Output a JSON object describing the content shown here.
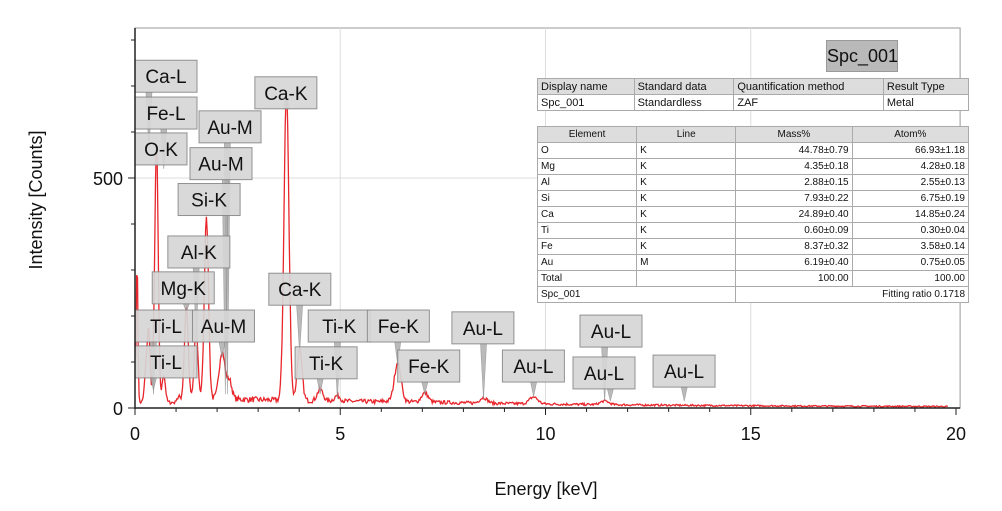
{
  "chart_data": {
    "type": "line",
    "title": "Spc_001",
    "xlabel": "Energy [keV]",
    "ylabel": "Intensity [Counts]",
    "xlim": [
      0,
      20.1
    ],
    "ylim": [
      0,
      826
    ],
    "xticks": [
      0,
      5,
      10,
      15,
      20
    ],
    "yticks": [
      0,
      500
    ],
    "grid": true,
    "series_color": "#e8262b",
    "peaks": [
      {
        "energy": 0.05,
        "height": 310,
        "width": 0.02
      },
      {
        "energy": 0.28,
        "height": 90,
        "width": 0.04
      },
      {
        "energy": 0.34,
        "height": 130,
        "width": 0.03
      },
      {
        "energy": 0.45,
        "height": 60,
        "width": 0.03
      },
      {
        "energy": 0.525,
        "height": 560,
        "width": 0.04
      },
      {
        "energy": 0.7,
        "height": 60,
        "width": 0.04
      },
      {
        "energy": 1.25,
        "height": 200,
        "width": 0.045
      },
      {
        "energy": 1.49,
        "height": 150,
        "width": 0.045
      },
      {
        "energy": 1.74,
        "height": 400,
        "width": 0.05
      },
      {
        "energy": 2.12,
        "height": 105,
        "width": 0.07
      },
      {
        "energy": 2.3,
        "height": 40,
        "width": 0.06
      },
      {
        "energy": 3.69,
        "height": 675,
        "width": 0.06
      },
      {
        "energy": 4.01,
        "height": 110,
        "width": 0.06
      },
      {
        "energy": 4.51,
        "height": 25,
        "width": 0.07
      },
      {
        "energy": 4.93,
        "height": 12,
        "width": 0.07
      },
      {
        "energy": 6.4,
        "height": 85,
        "width": 0.08
      },
      {
        "energy": 7.06,
        "height": 20,
        "width": 0.08
      },
      {
        "energy": 8.49,
        "height": 12,
        "width": 0.09
      },
      {
        "energy": 9.71,
        "height": 15,
        "width": 0.1
      },
      {
        "energy": 11.44,
        "height": 8,
        "width": 0.1
      }
    ],
    "annotations": [
      {
        "text": "Ca-L",
        "energy": 0.34,
        "box_energy": 0.0,
        "box_top": 756,
        "tip": 560
      },
      {
        "text": "Fe-L",
        "energy": 0.7,
        "box_energy": 0.0,
        "box_top": 676,
        "tip": 520
      },
      {
        "text": "O-K",
        "energy": 0.525,
        "box_energy": 0.0,
        "box_top": 598,
        "tip": 540
      },
      {
        "text": "Au-M",
        "energy": 2.25,
        "box_energy": 1.56,
        "box_top": 646,
        "tip": 30
      },
      {
        "text": "Au-M",
        "energy": 2.2,
        "box_energy": 1.34,
        "box_top": 566,
        "tip": 30
      },
      {
        "text": "Si-K",
        "energy": 1.74,
        "box_energy": 1.05,
        "box_top": 488,
        "tip": 420
      },
      {
        "text": "Al-K",
        "energy": 1.49,
        "box_energy": 0.8,
        "box_top": 374,
        "tip": 160
      },
      {
        "text": "Mg-K",
        "energy": 1.25,
        "box_energy": 0.42,
        "box_top": 296,
        "tip": 210
      },
      {
        "text": "Ti-L",
        "energy": 0.45,
        "box_energy": 0.0,
        "box_top": 213,
        "tip": 30
      },
      {
        "text": "Au-M",
        "energy": 2.12,
        "box_energy": 1.4,
        "box_top": 213,
        "tip": 110
      },
      {
        "text": "Ti-L",
        "energy": 0.45,
        "box_energy": 0.0,
        "box_top": 135,
        "tip": 40
      },
      {
        "text": "Ca-K",
        "energy": 3.69,
        "box_energy": 2.92,
        "box_top": 720,
        "tip": 685
      },
      {
        "text": "Ca-K",
        "energy": 4.01,
        "box_energy": 3.26,
        "box_top": 293,
        "tip": 120
      },
      {
        "text": "Ti-K",
        "energy": 4.93,
        "box_energy": 4.22,
        "box_top": 213,
        "tip": 20
      },
      {
        "text": "Ti-K",
        "energy": 4.51,
        "box_energy": 3.9,
        "box_top": 133,
        "tip": 30
      },
      {
        "text": "Fe-K",
        "energy": 6.4,
        "box_energy": 5.66,
        "box_top": 213,
        "tip": 95
      },
      {
        "text": "Fe-K",
        "energy": 7.06,
        "box_energy": 6.4,
        "box_top": 126,
        "tip": 30
      },
      {
        "text": "Au-L",
        "energy": 8.49,
        "box_energy": 7.72,
        "box_top": 209,
        "tip": 20
      },
      {
        "text": "Au-L",
        "energy": 9.71,
        "box_energy": 8.95,
        "box_top": 126,
        "tip": 25
      },
      {
        "text": "Au-L",
        "energy": 11.44,
        "box_energy": 10.84,
        "box_top": 202,
        "tip": 15
      },
      {
        "text": "Au-L",
        "energy": 11.58,
        "box_energy": 10.67,
        "box_top": 111,
        "tip": 15
      },
      {
        "text": "Au-L",
        "energy": 13.38,
        "box_energy": 12.62,
        "box_top": 115,
        "tip": 15
      }
    ]
  },
  "spectrum_name": "Spc_001",
  "info_table": {
    "headers": [
      "Display name",
      "Standard data",
      "Quantification method",
      "Result Type"
    ],
    "row": [
      "Spc_001",
      "Standardless",
      "ZAF",
      "Metal"
    ]
  },
  "result_table": {
    "headers": [
      "Element",
      "Line",
      "Mass%",
      "Atom%"
    ],
    "rows": [
      [
        "O",
        "K",
        "44.78±0.79",
        "66.93±1.18"
      ],
      [
        "Mg",
        "K",
        "4.35±0.18",
        "4.28±0.18"
      ],
      [
        "Al",
        "K",
        "2.88±0.15",
        "2.55±0.13"
      ],
      [
        "Si",
        "K",
        "7.93±0.22",
        "6.75±0.19"
      ],
      [
        "Ca",
        "K",
        "24.89±0.40",
        "14.85±0.24"
      ],
      [
        "Ti",
        "K",
        "0.60±0.09",
        "0.30±0.04"
      ],
      [
        "Fe",
        "K",
        "8.37±0.32",
        "3.58±0.14"
      ],
      [
        "Au",
        "M",
        "6.19±0.40",
        "0.75±0.05"
      ],
      [
        "Total",
        "",
        "100.00",
        "100.00"
      ]
    ],
    "footer_name": "Spc_001",
    "footer_ratio": "Fitting ratio 0.1718"
  }
}
